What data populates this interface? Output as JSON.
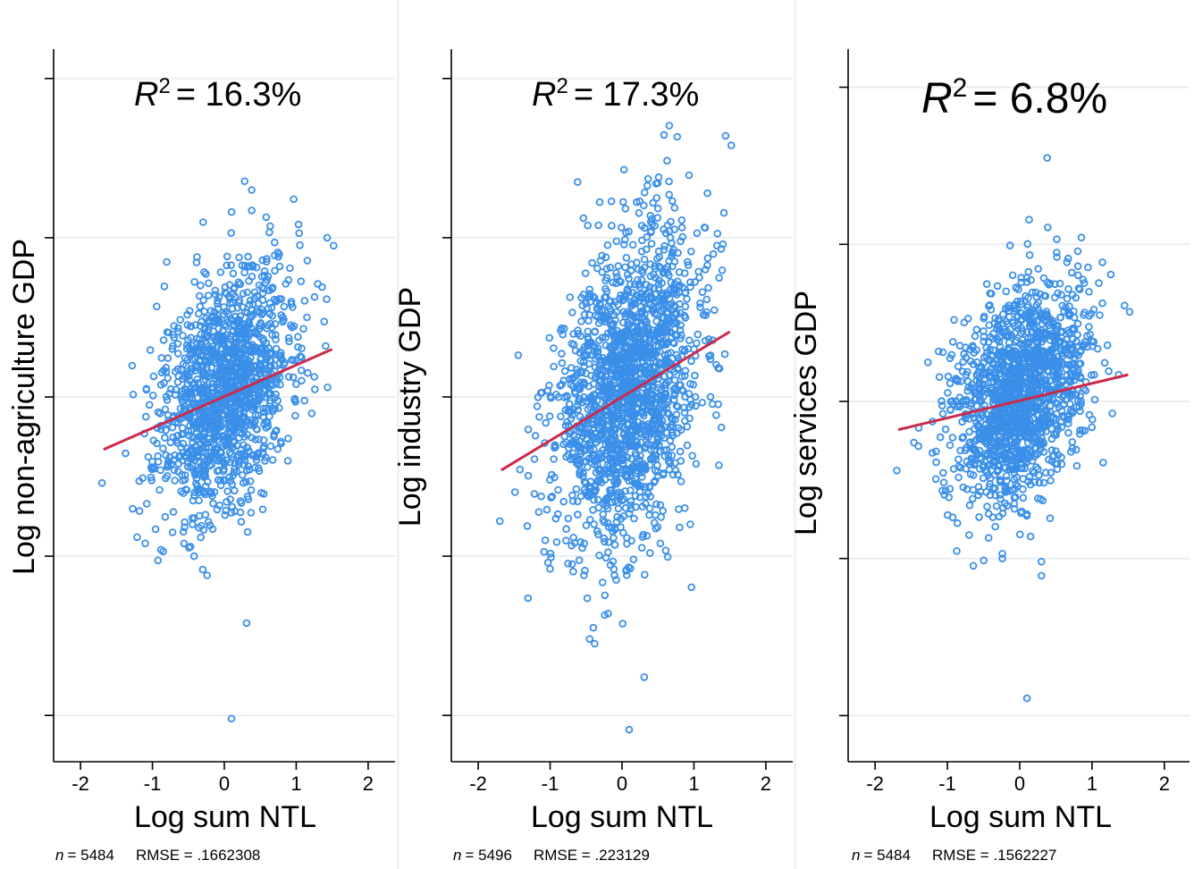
{
  "chart_data": [
    {
      "type": "scatter",
      "r2_label": "= 16.3%",
      "xlabel": "Log sum NTL",
      "ylabel": "Log non-agriculture GDP",
      "x_ticks": [
        "-2",
        "-1",
        "0",
        "1",
        "2"
      ],
      "xlim": [
        -2.2,
        2.2
      ],
      "ylim": [
        -2.1,
        2.1
      ],
      "y_ticks": [
        -2,
        -1,
        0,
        1,
        2
      ],
      "note": {
        "n_label": "n",
        "n_value": "= 5484",
        "rmse": "RMSE =  .1662308"
      },
      "fit": {
        "x": [
          -1.68,
          1.5
        ],
        "y": [
          -0.33,
          0.3
        ]
      },
      "cloud": {
        "cx": 0.0,
        "cy": 0.05,
        "sx": 0.45,
        "sy": 0.35,
        "n": 1400,
        "seed": 11
      },
      "points": [
        [
          0.38,
          1.3
        ],
        [
          1.43,
          1.0
        ],
        [
          1.52,
          0.95
        ],
        [
          0.7,
          0.97
        ],
        [
          0.77,
          0.82
        ],
        [
          1.3,
          0.71
        ],
        [
          1.36,
          0.69
        ],
        [
          -0.33,
          0.7
        ],
        [
          1.15,
          0.5
        ],
        [
          1.41,
          0.32
        ],
        [
          -1.7,
          -0.54
        ],
        [
          -1.1,
          -0.92
        ],
        [
          -0.47,
          -0.94
        ],
        [
          -0.42,
          -1.0
        ],
        [
          -0.24,
          -1.12
        ],
        [
          0.31,
          -1.42
        ],
        [
          0.1,
          -2.02
        ],
        [
          -0.85,
          -0.97
        ],
        [
          -0.72,
          -0.85
        ]
      ]
    },
    {
      "type": "scatter",
      "r2_label": "= 17.3%",
      "xlabel": "Log sum NTL",
      "ylabel": "Log industry GDP",
      "x_ticks": [
        "-2",
        "-1",
        "0",
        "1",
        "2"
      ],
      "xlim": [
        -2.2,
        2.2
      ],
      "ylim": [
        -2.1,
        2.1
      ],
      "y_ticks": [
        -2,
        -1,
        0,
        1,
        2
      ],
      "note": {
        "n_label": "n",
        "n_value": "= 5496",
        "rmse": "RMSE =  .223129"
      },
      "fit": {
        "x": [
          -1.68,
          1.5
        ],
        "y": [
          -0.46,
          0.41
        ]
      },
      "cloud": {
        "cx": 0.05,
        "cy": 0.05,
        "sx": 0.5,
        "sy": 0.45,
        "n": 1700,
        "seed": 23
      },
      "points": [
        [
          1.44,
          1.64
        ],
        [
          1.52,
          1.58
        ],
        [
          0.7,
          1.23
        ],
        [
          0.83,
          1.11
        ],
        [
          0.4,
          1.1
        ],
        [
          1.32,
          0.95
        ],
        [
          1.38,
          0.93
        ],
        [
          1.16,
          0.8
        ],
        [
          -1.7,
          -0.78
        ],
        [
          -1.0,
          -1.08
        ],
        [
          -0.53,
          -1.12
        ],
        [
          -0.24,
          -1.37
        ],
        [
          -0.45,
          -1.52
        ],
        [
          -0.38,
          -1.55
        ],
        [
          0.31,
          -1.76
        ],
        [
          0.1,
          -2.09
        ],
        [
          0.8,
          -0.82
        ],
        [
          0.95,
          -0.8
        ]
      ]
    },
    {
      "type": "scatter",
      "r2_label": "= 6.8%",
      "xlabel": "Log sum NTL",
      "ylabel": "Log services GDP",
      "x_ticks": [
        "-2",
        "-1",
        "0",
        "1",
        "2"
      ],
      "xlim": [
        -2.2,
        2.2
      ],
      "ylim": [
        -2.1,
        2.1
      ],
      "y_ticks": [
        -2,
        -1,
        0,
        1,
        2
      ],
      "note": {
        "n_label": "n",
        "n_value": "= 5484",
        "rmse": "RMSE =  .1562227"
      },
      "fit": {
        "x": [
          -1.68,
          1.5
        ],
        "y": [
          -0.18,
          0.17
        ]
      },
      "cloud": {
        "cx": 0.0,
        "cy": 0.05,
        "sx": 0.45,
        "sy": 0.32,
        "n": 1500,
        "seed": 37
      },
      "points": [
        [
          0.38,
          1.55
        ],
        [
          0.67,
          0.91
        ],
        [
          0.72,
          0.82
        ],
        [
          1.45,
          0.61
        ],
        [
          1.52,
          0.57
        ],
        [
          -1.7,
          -0.44
        ],
        [
          -0.7,
          -0.85
        ],
        [
          -0.24,
          -0.97
        ],
        [
          -0.24,
          -1.0
        ],
        [
          0.3,
          -1.02
        ],
        [
          0.1,
          -1.89
        ],
        [
          0.3,
          -1.11
        ],
        [
          0.15,
          -0.86
        ]
      ]
    }
  ]
}
